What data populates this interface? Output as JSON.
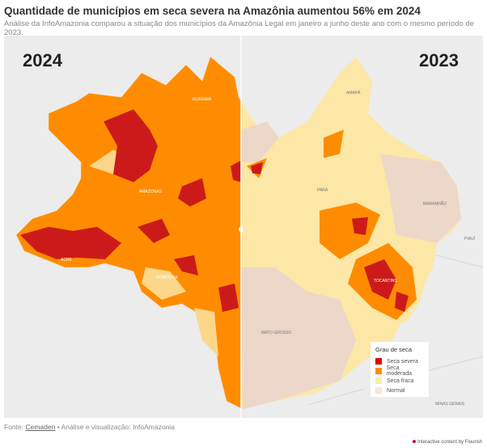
{
  "header": {
    "title": "Quantidade de municípios em seca severa na Amazônia aumentou 56% em 2024",
    "subtitle": "Análise da InfoAmazonia comparou a situação dos municípios da Amazônia Legal em janeiro a junho deste ano com o mesmo período de 2023."
  },
  "map": {
    "left_year": "2024",
    "right_year": "2023",
    "state_labels": [
      "RORAIMA",
      "AMAZONAS",
      "ACRE",
      "RONDÔNIA",
      "AMAPÁ",
      "PARÁ",
      "MARANHÃO",
      "TOCANTINS",
      "MATO GROSSO",
      "PIAUÍ",
      "MINAS GERAIS"
    ]
  },
  "legend": {
    "title": "Grau de seca",
    "items": [
      {
        "label": "Seca severa",
        "color": "#e00000"
      },
      {
        "label": "Seca moderada",
        "color": "#ff8c00"
      },
      {
        "label": "Seca fraca",
        "color": "#f7eea8"
      },
      {
        "label": "Normal",
        "color": "#f5e6dc"
      }
    ]
  },
  "footer": {
    "source_label": "Fonte:",
    "source_link": "Cemaden",
    "credit": "• Análise e visualização: InfoAmazonia"
  },
  "flourish": "Interactive content by Flourish"
}
